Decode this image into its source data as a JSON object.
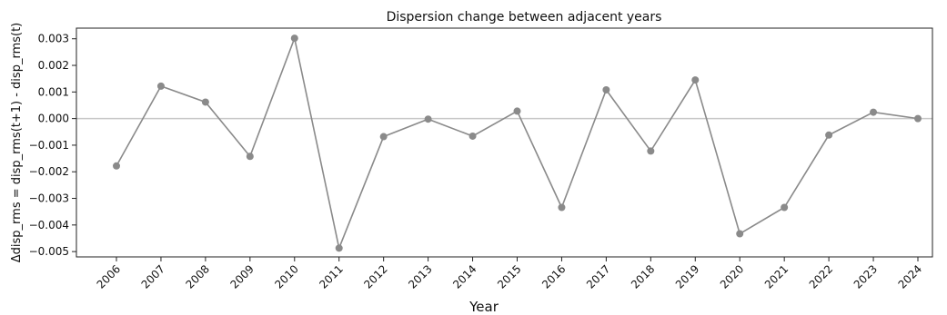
{
  "chart_data": {
    "type": "line",
    "title": "Dispersion change between adjacent years",
    "xlabel": "Year",
    "ylabel": "Δdisp_rms = disp_rms(t+1) - disp_rms(t)",
    "categories": [
      "2006",
      "2007",
      "2008",
      "2009",
      "2010",
      "2011",
      "2012",
      "2013",
      "2014",
      "2015",
      "2016",
      "2017",
      "2018",
      "2019",
      "2020",
      "2021",
      "2022",
      "2023",
      "2024"
    ],
    "series": [
      {
        "values": [
          -0.00178,
          0.00122,
          0.00062,
          -0.00142,
          0.00302,
          -0.00487,
          -0.00068,
          -2e-05,
          -0.00066,
          0.00028,
          -0.00334,
          0.00108,
          -0.00122,
          0.00145,
          -0.00433,
          -0.00334,
          -0.00062,
          0.00024,
          0.0
        ]
      }
    ],
    "ylim": [
      -0.0052,
      0.0034
    ],
    "yticks": [
      0.003,
      0.002,
      0.001,
      0.0,
      -0.001,
      -0.002,
      -0.003,
      -0.004,
      -0.005
    ],
    "ytick_labels": [
      "0.003",
      "0.002",
      "0.001",
      "0.000",
      "−0.001",
      "−0.002",
      "−0.003",
      "−0.004",
      "−0.005"
    ],
    "reference_line_y": 0,
    "colors": {
      "series": "#8a8a8a",
      "reference_line": "#c8c8c8",
      "axes": "#222222"
    },
    "grid": false
  }
}
